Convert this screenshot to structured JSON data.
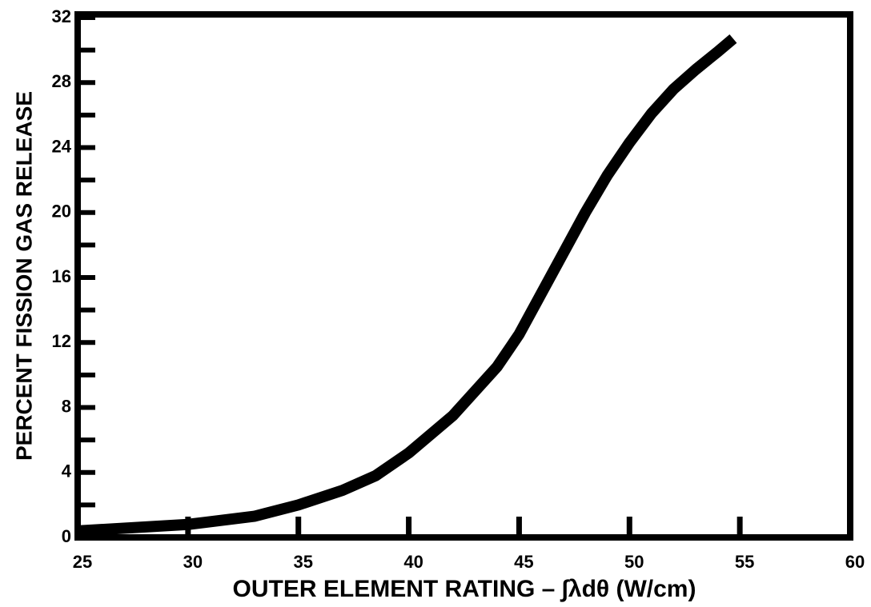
{
  "chart_data": {
    "type": "line",
    "x_label": "OUTER ELEMENT RATING – ∫λdθ (W/cm)",
    "y_label": "PERCENT FISSION GAS RELEASE",
    "x": [
      25,
      30,
      33,
      35,
      37,
      38.5,
      40,
      42,
      44,
      45,
      46,
      47,
      48,
      49,
      50,
      51,
      52,
      53,
      54,
      54.7
    ],
    "values": [
      0.4,
      0.8,
      1.3,
      2.0,
      2.9,
      3.8,
      5.2,
      7.5,
      10.5,
      12.5,
      15,
      17.5,
      20,
      22.3,
      24.3,
      26.1,
      27.6,
      28.8,
      29.9,
      30.7
    ],
    "color": "#000000",
    "xlim": [
      25,
      60
    ],
    "xticks": [
      25,
      30,
      35,
      40,
      45,
      50,
      55,
      60
    ],
    "ylim": [
      0,
      32
    ],
    "yticks": [
      0,
      4,
      8,
      12,
      16,
      20,
      24,
      28,
      32
    ],
    "yminor_ticks": [
      2,
      6,
      10,
      14,
      18,
      22,
      26,
      30
    ],
    "grid": false
  }
}
